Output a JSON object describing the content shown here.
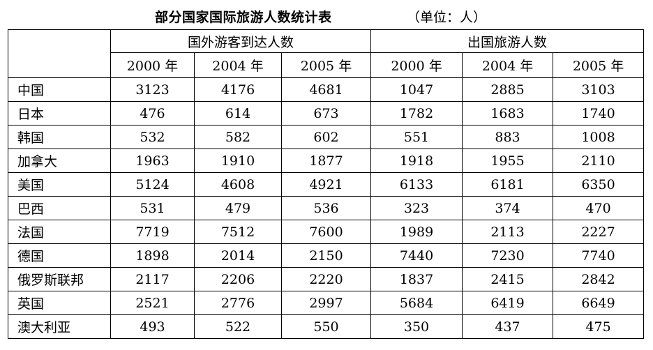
{
  "title": "部分国家国际旅游人数统计表",
  "unit": "（单位：人）",
  "table": {
    "groups": [
      "国外游客到达人数",
      "出国旅游人数"
    ],
    "years": [
      "2000 年",
      "2004 年",
      "2005 年",
      "2000 年",
      "2004 年",
      "2005 年"
    ],
    "rows": [
      {
        "country": "中国",
        "values": [
          "3123",
          "4176",
          "4681",
          "1047",
          "2885",
          "3103"
        ]
      },
      {
        "country": "日本",
        "values": [
          "476",
          "614",
          "673",
          "1782",
          "1683",
          "1740"
        ]
      },
      {
        "country": "韩国",
        "values": [
          "532",
          "582",
          "602",
          "551",
          "883",
          "1008"
        ]
      },
      {
        "country": "加拿大",
        "values": [
          "1963",
          "1910",
          "1877",
          "1918",
          "1955",
          "2110"
        ]
      },
      {
        "country": "美国",
        "values": [
          "5124",
          "4608",
          "4921",
          "6133",
          "6181",
          "6350"
        ]
      },
      {
        "country": "巴西",
        "values": [
          "531",
          "479",
          "536",
          "323",
          "374",
          "470"
        ]
      },
      {
        "country": "法国",
        "values": [
          "7719",
          "7512",
          "7600",
          "1989",
          "2113",
          "2227"
        ]
      },
      {
        "country": "德国",
        "values": [
          "1898",
          "2014",
          "2150",
          "7440",
          "7230",
          "7740"
        ]
      },
      {
        "country": "俄罗斯联邦",
        "values": [
          "2117",
          "2206",
          "2220",
          "1837",
          "2415",
          "2842"
        ]
      },
      {
        "country": "英国",
        "values": [
          "2521",
          "2776",
          "2997",
          "5684",
          "6419",
          "6649"
        ]
      },
      {
        "country": "澳大利亚",
        "values": [
          "493",
          "522",
          "550",
          "350",
          "437",
          "475"
        ]
      }
    ]
  }
}
